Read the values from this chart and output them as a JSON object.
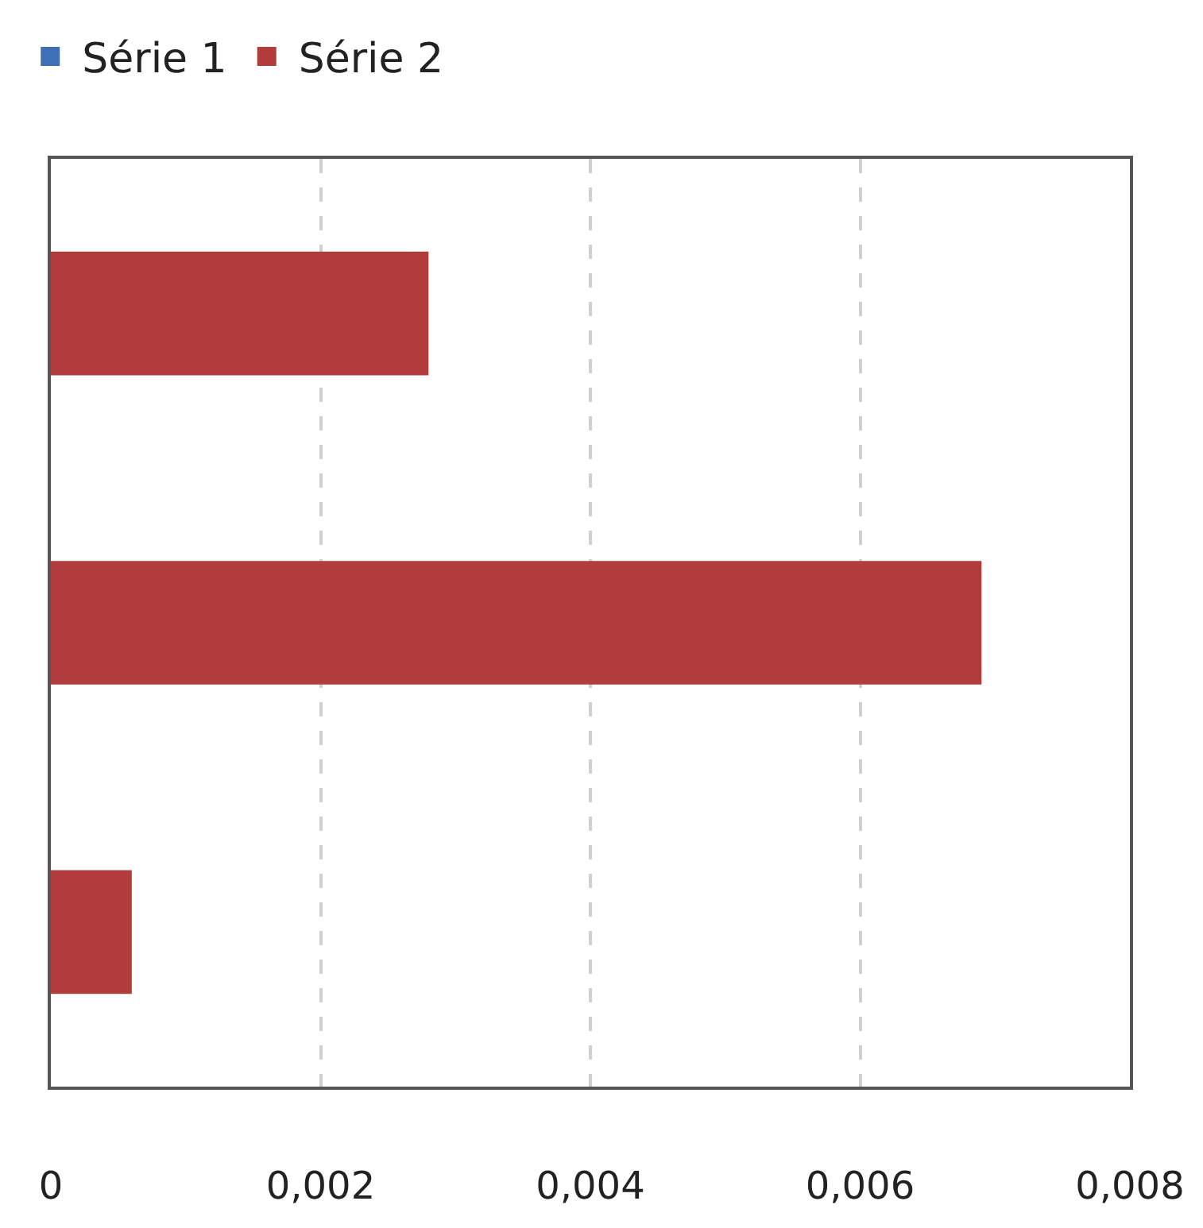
{
  "chart_data": {
    "type": "bar",
    "orientation": "horizontal",
    "categories": [
      null,
      null,
      null
    ],
    "series": [
      {
        "name": "Série 1",
        "color": "#3f6fb5",
        "values": [
          0,
          0,
          0
        ]
      },
      {
        "name": "Série 2",
        "color": "#b13c3c",
        "values": [
          0.0028,
          0.0069,
          0.0006
        ]
      }
    ],
    "xlim": [
      0,
      0.008
    ],
    "xticks": [
      0,
      {
        "value": 0.002,
        "label": "0,002"
      },
      {
        "value": 0.004,
        "label": "0,004"
      },
      {
        "value": 0.006,
        "label": "0,006"
      },
      {
        "value": 0.008,
        "label": "0,008"
      }
    ],
    "grid": "x",
    "legend": "top left",
    "tick_labels": "x"
  }
}
